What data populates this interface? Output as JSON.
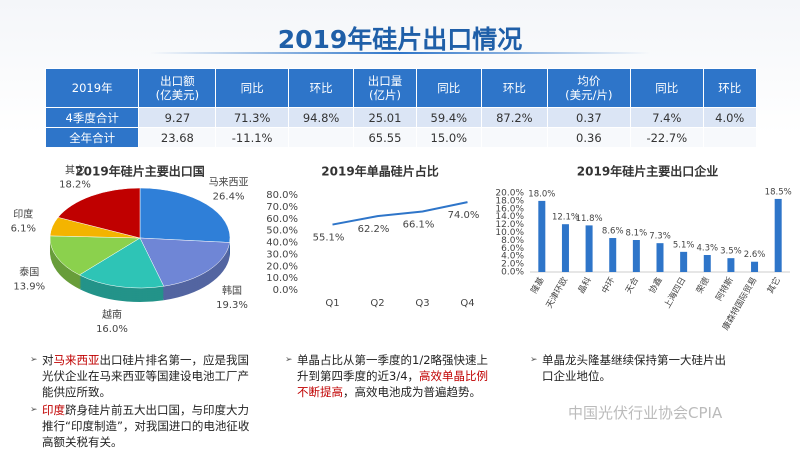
{
  "title": "2019年硅片出口情况",
  "table": {
    "header": [
      [
        "2019年"
      ],
      [
        "出口额",
        "(亿美元)"
      ],
      [
        "同比"
      ],
      [
        "环比"
      ],
      [
        "出口量",
        "(亿片)"
      ],
      [
        "同比"
      ],
      [
        "环比"
      ],
      [
        "均价",
        "(美元/片)"
      ],
      [
        "同比"
      ],
      [
        "环比"
      ]
    ],
    "rows": [
      [
        "4季度合计",
        "9.27",
        "71.3%",
        "94.8%",
        "25.01",
        "59.4%",
        "87.2%",
        "0.37",
        "7.4%",
        "4.0%"
      ],
      [
        "全年合计",
        "23.68",
        "-11.1%",
        null,
        "65.55",
        "15.0%",
        null,
        "0.36",
        "-22.7%",
        null
      ]
    ]
  },
  "chart_data": [
    {
      "type": "pie",
      "title": "2019年硅片主要出口国",
      "categories": [
        "马来西亚",
        "韩国",
        "越南",
        "泰国",
        "印度",
        "其它"
      ],
      "values": [
        26.4,
        19.3,
        16.0,
        13.9,
        6.1,
        18.2
      ],
      "value_labels": [
        "26.4%",
        "19.3%",
        "16.0%",
        "13.9%",
        "6.1%",
        "18.2%"
      ],
      "colors": [
        "#2f7fd8",
        "#6f86d6",
        "#2ec4b6",
        "#8bd14d",
        "#f4b400",
        "#c00000"
      ]
    },
    {
      "type": "line",
      "title": "2019年单晶硅片占比",
      "categories": [
        "Q1",
        "Q2",
        "Q3",
        "Q4"
      ],
      "values": [
        55.1,
        62.2,
        66.1,
        74.0
      ],
      "value_labels": [
        "55.1%",
        "62.2%",
        "66.1%",
        "74.0%"
      ],
      "color": "#2e75c9",
      "ylim": [
        0,
        80
      ],
      "yticks": [
        {
          "value": 0,
          "label": "0.0%"
        },
        {
          "value": 10,
          "label": "10.0%"
        },
        {
          "value": 20,
          "label": "20.0%"
        },
        {
          "value": 30,
          "label": "30.0%"
        },
        {
          "value": 40,
          "label": "40.0%"
        },
        {
          "value": 50,
          "label": "50.0%"
        },
        {
          "value": 60,
          "label": "60.0%"
        },
        {
          "value": 70,
          "label": "70.0%"
        },
        {
          "value": 80,
          "label": "80.0%"
        }
      ]
    },
    {
      "type": "bar",
      "title": "2019年硅片主要出口企业",
      "categories": [
        "隆基",
        "天津环欧",
        "晶科",
        "中环",
        "天合",
        "协鑫",
        "上海四日",
        "荣德",
        "阿特斯",
        "康森特国际贸易",
        "其它"
      ],
      "values": [
        18.0,
        12.1,
        11.8,
        8.6,
        8.1,
        7.3,
        5.1,
        4.3,
        3.5,
        2.6,
        18.5
      ],
      "value_labels": [
        "18.0%",
        "12.1%",
        "11.8%",
        "8.6%",
        "8.1%",
        "7.3%",
        "5.1%",
        "4.3%",
        "3.5%",
        "2.6%",
        "18.5%"
      ],
      "color": "#2e75c9",
      "ylim": [
        0,
        20
      ],
      "yticks": [
        {
          "value": 0,
          "label": "0.0%"
        },
        {
          "value": 2,
          "label": "2.0%"
        },
        {
          "value": 4,
          "label": "4.0%"
        },
        {
          "value": 6,
          "label": "6.0%"
        },
        {
          "value": 8,
          "label": "8.0%"
        },
        {
          "value": 10,
          "label": "10.0%"
        },
        {
          "value": 12,
          "label": "12.0%"
        },
        {
          "value": 14,
          "label": "14.0%"
        },
        {
          "value": 16,
          "label": "16.0%"
        },
        {
          "value": 18,
          "label": "18.0%"
        },
        {
          "value": 20,
          "label": "20.0%"
        }
      ]
    }
  ],
  "bullets": [
    [
      [
        {
          "text": "对"
        },
        {
          "text": "马来西亚",
          "color": "#c00000"
        },
        {
          "text": "出口硅片排名第一，应是我国光伏企业在马来西亚等国建设电池工厂产能供应所致。"
        }
      ],
      [
        {
          "text": "印度",
          "color": "#c00000"
        },
        {
          "text": "跻身硅片前五大出口国，与印度大力推行“印度制造”，对我国进口的电池征收高额关税有关。"
        }
      ]
    ],
    [
      [
        {
          "text": "单晶占比从第一季度的1/2略强快速上升到第四季度的近3/4，"
        },
        {
          "text": "高效单晶比例不断提高",
          "color": "#c00000"
        },
        {
          "text": "，高效电池成为普遍趋势。"
        }
      ]
    ],
    [
      [
        {
          "text": "单晶龙头隆基继续保持第一大硅片出口企业地位。"
        }
      ]
    ]
  ],
  "watermark": "中国光伏行业协会CPIA"
}
